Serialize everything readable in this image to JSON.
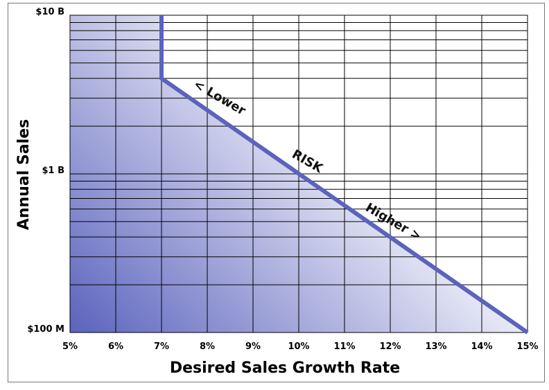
{
  "chart_data": {
    "type": "area",
    "xlabel": "Desired Sales Growth Rate",
    "ylabel": "Annual Sales",
    "x_ticks": [
      "5%",
      "6%",
      "7%",
      "8%",
      "9%",
      "10%",
      "11%",
      "12%",
      "13%",
      "14%",
      "15%"
    ],
    "y_ticks": [
      {
        "value": 100000000,
        "label": "$100 M"
      },
      {
        "value": 1000000000,
        "label": "$1 B"
      },
      {
        "value": 10000000000,
        "label": "$10 B"
      }
    ],
    "xlim": [
      5,
      15
    ],
    "ylim": [
      100000000,
      10000000000
    ],
    "y_scale": "log",
    "grid": true,
    "boundary_line": {
      "x": [
        7,
        7,
        15
      ],
      "y": [
        10000000000,
        4000000000,
        100000000
      ],
      "color": "#5b63bd"
    },
    "fill_gradient": {
      "from": "#5b63bd",
      "to": "#ffffff"
    },
    "annotations": [
      "< Lower",
      "RISK",
      "Higher >"
    ]
  }
}
